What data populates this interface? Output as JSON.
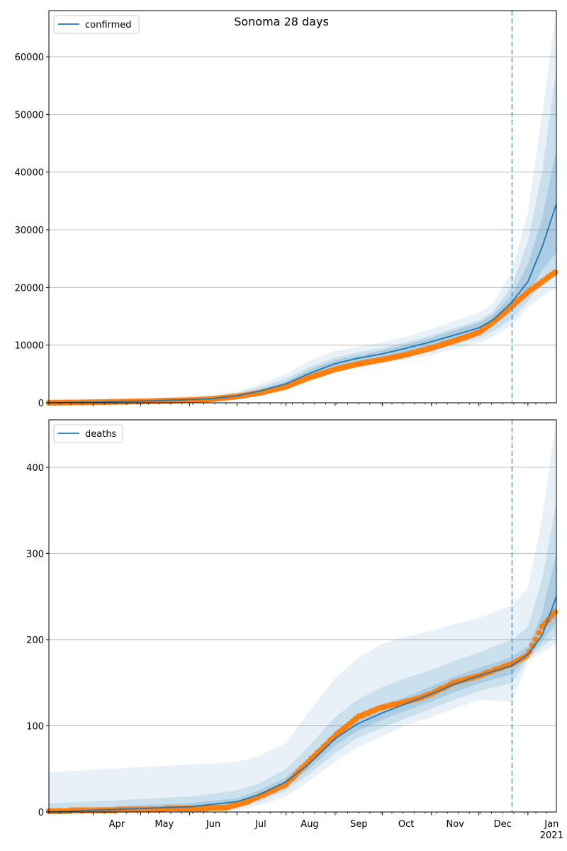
{
  "colors": {
    "model": "#1f77b4",
    "observed": "#ff7f0e",
    "band": "#1f77b4",
    "grid": "#b0b0b0",
    "cutoff": "#1f77b4"
  },
  "chart_data": [
    {
      "type": "line",
      "title": "Sonoma 28 days",
      "legend": [
        "confirmed"
      ],
      "legend_position": "top-left",
      "grid": "horizontal",
      "x_start": "2020-03-04",
      "x_end": "2021-01-19",
      "xlim": [
        "2020-03-04",
        "2021-01-19"
      ],
      "ylim": [
        0,
        68000
      ],
      "yticks": [
        0,
        10000,
        20000,
        30000,
        40000,
        50000,
        60000
      ],
      "ytick_labels": [
        "0",
        "10000",
        "20000",
        "30000",
        "40000",
        "50000",
        "60000"
      ],
      "xtick_labels": [],
      "cutoff_date": "2020-12-22",
      "series": [
        {
          "name": "confirmed",
          "kind": "model",
          "x": [
            "2020-03-04",
            "2020-04-01",
            "2020-05-01",
            "2020-06-01",
            "2020-06-15",
            "2020-07-01",
            "2020-07-15",
            "2020-08-01",
            "2020-08-15",
            "2020-09-01",
            "2020-09-15",
            "2020-10-01",
            "2020-10-15",
            "2020-11-01",
            "2020-11-15",
            "2020-12-01",
            "2020-12-10",
            "2020-12-22",
            "2021-01-01",
            "2021-01-10",
            "2021-01-19"
          ],
          "values": [
            20,
            120,
            300,
            550,
            700,
            1200,
            2000,
            3300,
            5000,
            6800,
            7700,
            8500,
            9400,
            10600,
            11700,
            13000,
            14400,
            17500,
            21000,
            27000,
            34500
          ],
          "bands": [
            {
              "lower": [
                0,
                0,
                0,
                0,
                0,
                800,
                1400,
                2400,
                3800,
                5400,
                6200,
                6800,
                7500,
                8300,
                9300,
                10400,
                11500,
                13500,
                16500,
                18500,
                20000
              ],
              "upper": [
                300,
                400,
                700,
                1100,
                1400,
                2000,
                3200,
                5000,
                7200,
                9000,
                9700,
                10500,
                11400,
                12800,
                14100,
                15600,
                17200,
                23000,
                33000,
                50000,
                68000
              ]
            },
            {
              "lower": [
                0,
                0,
                50,
                150,
                250,
                900,
                1600,
                2700,
                4200,
                5900,
                6700,
                7400,
                8100,
                9100,
                10000,
                11200,
                12400,
                14600,
                17600,
                20500,
                22000
              ],
              "upper": [
                150,
                300,
                550,
                900,
                1150,
                1700,
                2700,
                4200,
                6100,
                7900,
                8700,
                9500,
                10400,
                11700,
                12900,
                14300,
                15800,
                20300,
                28000,
                40000,
                58000
              ]
            },
            {
              "lower": [
                0,
                50,
                150,
                300,
                450,
                1000,
                1800,
                3000,
                4600,
                6300,
                7200,
                7900,
                8700,
                9800,
                10800,
                12000,
                13300,
                15900,
                18800,
                23000,
                26000
              ],
              "upper": [
                50,
                200,
                450,
                750,
                950,
                1450,
                2300,
                3700,
                5600,
                7400,
                8200,
                9100,
                10000,
                11300,
                12500,
                13900,
                15300,
                18800,
                24000,
                32000,
                44000
              ]
            }
          ]
        },
        {
          "name": "observed",
          "kind": "observed",
          "x": [
            "2020-03-04",
            "2020-04-01",
            "2020-05-01",
            "2020-06-01",
            "2020-06-15",
            "2020-07-01",
            "2020-07-15",
            "2020-08-01",
            "2020-08-15",
            "2020-09-01",
            "2020-09-15",
            "2020-10-01",
            "2020-10-15",
            "2020-11-01",
            "2020-11-15",
            "2020-12-01",
            "2020-12-10",
            "2020-12-22",
            "2021-01-01",
            "2021-01-10",
            "2021-01-19"
          ],
          "values": [
            0,
            100,
            250,
            450,
            650,
            1100,
            1700,
            2800,
            4300,
            5800,
            6700,
            7500,
            8300,
            9500,
            10700,
            12200,
            14000,
            16800,
            19200,
            21000,
            22800
          ]
        }
      ]
    },
    {
      "type": "line",
      "title": "",
      "legend": [
        "deaths"
      ],
      "legend_position": "top-left",
      "grid": "horizontal",
      "x_start": "2020-03-04",
      "x_end": "2021-01-19",
      "xlim": [
        "2020-03-04",
        "2021-01-19"
      ],
      "ylim": [
        0,
        455
      ],
      "yticks": [
        0,
        100,
        200,
        300,
        400
      ],
      "ytick_labels": [
        "0",
        "100",
        "200",
        "300",
        "400"
      ],
      "xtick_labels": [
        "Apr",
        "May",
        "Jun",
        "Jul",
        "Aug",
        "Sep",
        "Oct",
        "Nov",
        "Dec",
        "Jan\n2021"
      ],
      "cutoff_date": "2020-12-22",
      "series": [
        {
          "name": "deaths",
          "kind": "model",
          "x": [
            "2020-03-04",
            "2020-04-01",
            "2020-05-01",
            "2020-06-01",
            "2020-07-01",
            "2020-07-15",
            "2020-08-01",
            "2020-08-15",
            "2020-09-01",
            "2020-09-15",
            "2020-10-01",
            "2020-10-15",
            "2020-11-01",
            "2020-11-15",
            "2020-12-01",
            "2020-12-22",
            "2021-01-01",
            "2021-01-10",
            "2021-01-19"
          ],
          "values": [
            0,
            2,
            4,
            6,
            12,
            20,
            35,
            55,
            85,
            102,
            115,
            125,
            137,
            148,
            158,
            170,
            183,
            205,
            250
          ],
          "bands": [
            {
              "lower": [
                0,
                0,
                0,
                0,
                2,
                8,
                18,
                35,
                58,
                75,
                88,
                100,
                110,
                120,
                130,
                128,
                175,
                185,
                195
              ],
              "upper": [
                46,
                49,
                52,
                55,
                58,
                65,
                80,
                115,
                155,
                178,
                195,
                203,
                210,
                218,
                225,
                240,
                260,
                340,
                455
              ]
            },
            {
              "lower": [
                0,
                0,
                1,
                2,
                6,
                12,
                25,
                43,
                68,
                86,
                98,
                108,
                120,
                130,
                140,
                150,
                178,
                192,
                205
              ],
              "upper": [
                10,
                12,
                15,
                18,
                25,
                33,
                50,
                75,
                110,
                130,
                145,
                155,
                165,
                175,
                185,
                200,
                215,
                270,
                360
              ]
            },
            {
              "lower": [
                0,
                1,
                2,
                4,
                9,
                16,
                30,
                49,
                77,
                94,
                107,
                117,
                128,
                139,
                149,
                160,
                180,
                198,
                220
              ],
              "upper": [
                3,
                5,
                8,
                10,
                16,
                25,
                40,
                62,
                94,
                112,
                124,
                133,
                146,
                157,
                167,
                180,
                192,
                230,
                300
              ]
            }
          ]
        },
        {
          "name": "observed",
          "kind": "observed",
          "x": [
            "2020-03-04",
            "2020-04-01",
            "2020-05-01",
            "2020-06-01",
            "2020-06-25",
            "2020-07-05",
            "2020-07-15",
            "2020-08-01",
            "2020-08-15",
            "2020-09-01",
            "2020-09-15",
            "2020-10-01",
            "2020-10-15",
            "2020-11-01",
            "2020-11-15",
            "2020-12-01",
            "2020-12-22",
            "2021-01-01",
            "2021-01-10",
            "2021-01-19"
          ],
          "values": [
            1,
            2,
            3,
            4,
            5,
            10,
            18,
            32,
            58,
            88,
            110,
            122,
            127,
            137,
            150,
            158,
            172,
            182,
            215,
            234
          ]
        }
      ]
    }
  ]
}
